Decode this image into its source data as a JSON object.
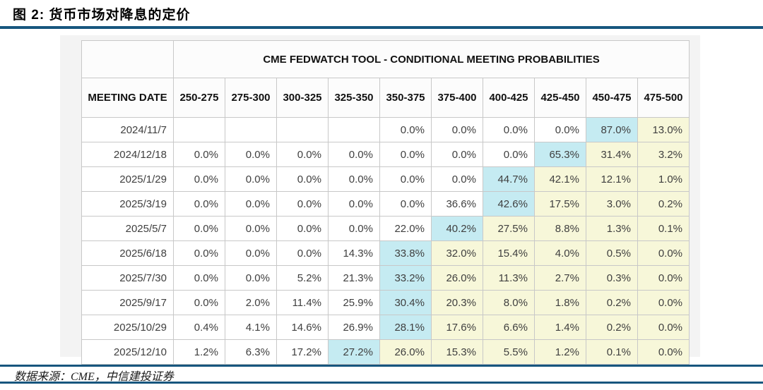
{
  "figure": {
    "title": "图 2:  货币市场对降息的定价",
    "source": "数据来源：CME，中信建投证券"
  },
  "colors": {
    "accent_line": "#17567e",
    "highlight_blue": "#c5ebf2",
    "highlight_yellow": "#f7f7d9",
    "panel_background": "#f3f3f3"
  },
  "table": {
    "banner": "CME FEDWATCH TOOL - CONDITIONAL MEETING PROBABILITIES",
    "date_column_header": "MEETING DATE",
    "rate_range_headers": [
      "250-275",
      "275-300",
      "300-325",
      "325-350",
      "350-375",
      "375-400",
      "400-425",
      "425-450",
      "450-475",
      "475-500"
    ],
    "highlight_legend": {
      "b": "blue-highest-probability",
      "y": "yellow-above-current",
      "n": "no-highlight"
    },
    "rows": [
      {
        "date": "2024/11/7",
        "values": [
          "",
          "",
          "",
          "",
          "0.0%",
          "0.0%",
          "0.0%",
          "0.0%",
          "87.0%",
          "13.0%"
        ],
        "highlights": [
          "n",
          "n",
          "n",
          "n",
          "n",
          "n",
          "n",
          "n",
          "b",
          "y"
        ]
      },
      {
        "date": "2024/12/18",
        "values": [
          "0.0%",
          "0.0%",
          "0.0%",
          "0.0%",
          "0.0%",
          "0.0%",
          "0.0%",
          "65.3%",
          "31.4%",
          "3.2%"
        ],
        "highlights": [
          "n",
          "n",
          "n",
          "n",
          "n",
          "n",
          "n",
          "b",
          "y",
          "y"
        ]
      },
      {
        "date": "2025/1/29",
        "values": [
          "0.0%",
          "0.0%",
          "0.0%",
          "0.0%",
          "0.0%",
          "0.0%",
          "44.7%",
          "42.1%",
          "12.1%",
          "1.0%"
        ],
        "highlights": [
          "n",
          "n",
          "n",
          "n",
          "n",
          "n",
          "b",
          "y",
          "y",
          "y"
        ]
      },
      {
        "date": "2025/3/19",
        "values": [
          "0.0%",
          "0.0%",
          "0.0%",
          "0.0%",
          "0.0%",
          "36.6%",
          "42.6%",
          "17.5%",
          "3.0%",
          "0.2%"
        ],
        "highlights": [
          "n",
          "n",
          "n",
          "n",
          "n",
          "n",
          "b",
          "y",
          "y",
          "y"
        ]
      },
      {
        "date": "2025/5/7",
        "values": [
          "0.0%",
          "0.0%",
          "0.0%",
          "0.0%",
          "22.0%",
          "40.2%",
          "27.5%",
          "8.8%",
          "1.3%",
          "0.1%"
        ],
        "highlights": [
          "n",
          "n",
          "n",
          "n",
          "n",
          "b",
          "y",
          "y",
          "y",
          "y"
        ]
      },
      {
        "date": "2025/6/18",
        "values": [
          "0.0%",
          "0.0%",
          "0.0%",
          "14.3%",
          "33.8%",
          "32.0%",
          "15.4%",
          "4.0%",
          "0.5%",
          "0.0%"
        ],
        "highlights": [
          "n",
          "n",
          "n",
          "n",
          "b",
          "y",
          "y",
          "y",
          "y",
          "y"
        ]
      },
      {
        "date": "2025/7/30",
        "values": [
          "0.0%",
          "0.0%",
          "5.2%",
          "21.3%",
          "33.2%",
          "26.0%",
          "11.3%",
          "2.7%",
          "0.3%",
          "0.0%"
        ],
        "highlights": [
          "n",
          "n",
          "n",
          "n",
          "b",
          "y",
          "y",
          "y",
          "y",
          "y"
        ]
      },
      {
        "date": "2025/9/17",
        "values": [
          "0.0%",
          "2.0%",
          "11.4%",
          "25.9%",
          "30.4%",
          "20.3%",
          "8.0%",
          "1.8%",
          "0.2%",
          "0.0%"
        ],
        "highlights": [
          "n",
          "n",
          "n",
          "n",
          "b",
          "y",
          "y",
          "y",
          "y",
          "y"
        ]
      },
      {
        "date": "2025/10/29",
        "values": [
          "0.4%",
          "4.1%",
          "14.6%",
          "26.9%",
          "28.1%",
          "17.6%",
          "6.6%",
          "1.4%",
          "0.2%",
          "0.0%"
        ],
        "highlights": [
          "n",
          "n",
          "n",
          "n",
          "b",
          "y",
          "y",
          "y",
          "y",
          "y"
        ]
      },
      {
        "date": "2025/12/10",
        "values": [
          "1.2%",
          "6.3%",
          "17.2%",
          "27.2%",
          "26.0%",
          "15.3%",
          "5.5%",
          "1.2%",
          "0.1%",
          "0.0%"
        ],
        "highlights": [
          "n",
          "n",
          "n",
          "b",
          "y",
          "y",
          "y",
          "y",
          "y",
          "y"
        ]
      }
    ]
  }
}
